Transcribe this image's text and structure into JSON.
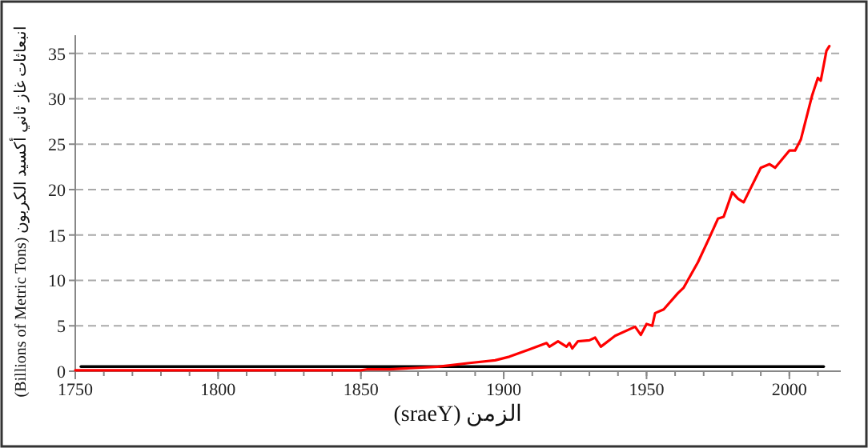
{
  "chart_data": {
    "type": "line",
    "xlabel": "الزمن (sraeY)",
    "ylabel": "انبعاثات غاز ثاني أكسيد الكربون (Billions of Metric Tons)",
    "xlim": [
      1750,
      2018
    ],
    "xticks": [
      1750,
      1800,
      1850,
      1900,
      1950,
      2000
    ],
    "ylim": [
      0,
      37
    ],
    "yticks": [
      0,
      5,
      10,
      15,
      20,
      25,
      30,
      35
    ],
    "grid": "y",
    "marker": "none",
    "line_style": "solid",
    "series": [
      {
        "color": "#ff0000",
        "x": [
          1750,
          1800,
          1850,
          1852,
          1860,
          1877,
          1888,
          1897,
          1902,
          1909,
          1915,
          1916,
          1919,
          1922,
          1923,
          1924,
          1926,
          1930,
          1932,
          1934,
          1939,
          1946,
          1948,
          1950,
          1952,
          1953,
          1956,
          1961,
          1963,
          1968,
          1972,
          1975,
          1977,
          1980,
          1982,
          1984,
          1990,
          1993,
          1995,
          2000,
          2002,
          2004,
          2008,
          2010,
          2011,
          2013,
          2014
        ],
        "values": [
          0.1,
          0.1,
          0.1,
          0.2,
          0.2,
          0.5,
          0.9,
          1.2,
          1.6,
          2.4,
          3.1,
          2.7,
          3.3,
          2.7,
          3.1,
          2.5,
          3.3,
          3.4,
          3.7,
          2.7,
          3.9,
          4.9,
          4.0,
          5.2,
          5.0,
          6.4,
          6.8,
          8.6,
          9.2,
          12.0,
          14.7,
          16.8,
          17.0,
          19.7,
          19.0,
          18.6,
          22.4,
          22.8,
          22.4,
          24.3,
          24.3,
          25.5,
          30.4,
          32.3,
          32.0,
          35.3,
          35.8
        ]
      },
      {
        "color": "#000000",
        "x": [
          1752,
          2012
        ],
        "values": [
          0.5,
          0.5
        ]
      }
    ]
  }
}
